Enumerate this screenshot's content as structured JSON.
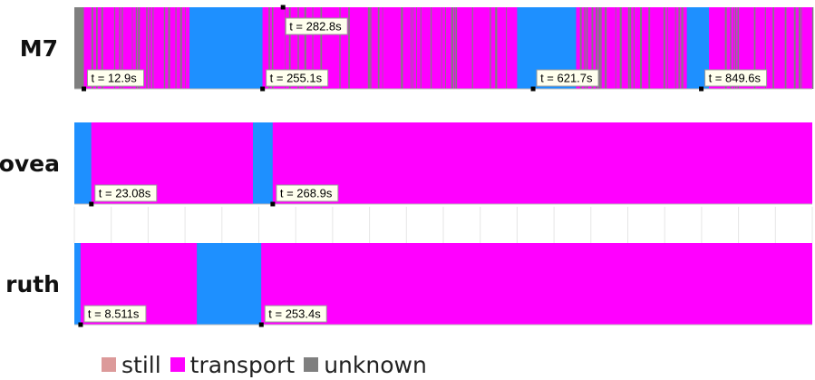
{
  "chart_data": {
    "type": "timeline",
    "x_range": [
      0,
      1000
    ],
    "colors": {
      "still": "#dc9a9a",
      "transport": "#ff00ff",
      "unknown": "#7f7f7f",
      "walk": "#1e90ff"
    },
    "legend": [
      {
        "label": "still",
        "color": "#dc9a9a"
      },
      {
        "label": "transport",
        "color": "#ff00ff"
      },
      {
        "label": "unknown",
        "color": "#7f7f7f"
      }
    ],
    "rows": [
      {
        "label": "M7",
        "segments": [
          {
            "start": 0,
            "end": 12.9,
            "class": "unknown"
          },
          {
            "start": 12.9,
            "end": 156,
            "class": "transport"
          },
          {
            "start": 156,
            "end": 255.1,
            "class": "walk"
          },
          {
            "start": 255.1,
            "end": 640,
            "class": "transport"
          },
          {
            "start": 600,
            "end": 680,
            "class": "walk"
          },
          {
            "start": 680,
            "end": 860,
            "class": "transport"
          },
          {
            "start": 830,
            "end": 860,
            "class": "walk"
          },
          {
            "start": 860,
            "end": 1000,
            "class": "transport"
          }
        ],
        "callouts": [
          {
            "t": 12.9,
            "text": "t = 12.9s",
            "position": "bottom"
          },
          {
            "t": 255.1,
            "text": "t = 255.1s",
            "position": "bottom"
          },
          {
            "t": 282.8,
            "text": "t = 282.8s",
            "position": "top"
          },
          {
            "t": 621.7,
            "text": "t = 621.7s",
            "position": "bottom"
          },
          {
            "t": 849.6,
            "text": "t = 849.6s",
            "position": "bottom"
          }
        ]
      },
      {
        "label": "ovea",
        "segments": [
          {
            "start": 0,
            "end": 23.08,
            "class": "walk"
          },
          {
            "start": 23.08,
            "end": 242,
            "class": "transport"
          },
          {
            "start": 242,
            "end": 268.9,
            "class": "walk"
          },
          {
            "start": 268.9,
            "end": 1000,
            "class": "transport"
          }
        ],
        "callouts": [
          {
            "t": 23.08,
            "text": "t = 23.08s",
            "position": "bottom"
          },
          {
            "t": 268.9,
            "text": "t = 268.9s",
            "position": "bottom"
          }
        ]
      },
      {
        "label": "ruth",
        "segments": [
          {
            "start": 0,
            "end": 8.511,
            "class": "walk"
          },
          {
            "start": 8.511,
            "end": 166,
            "class": "transport"
          },
          {
            "start": 166,
            "end": 253.4,
            "class": "walk"
          },
          {
            "start": 253.4,
            "end": 1000,
            "class": "transport"
          }
        ],
        "callouts": [
          {
            "t": 8.511,
            "text": "t = 8.511s",
            "position": "bottom"
          },
          {
            "t": 253.4,
            "text": "t = 253.4s",
            "position": "bottom"
          }
        ]
      }
    ]
  }
}
